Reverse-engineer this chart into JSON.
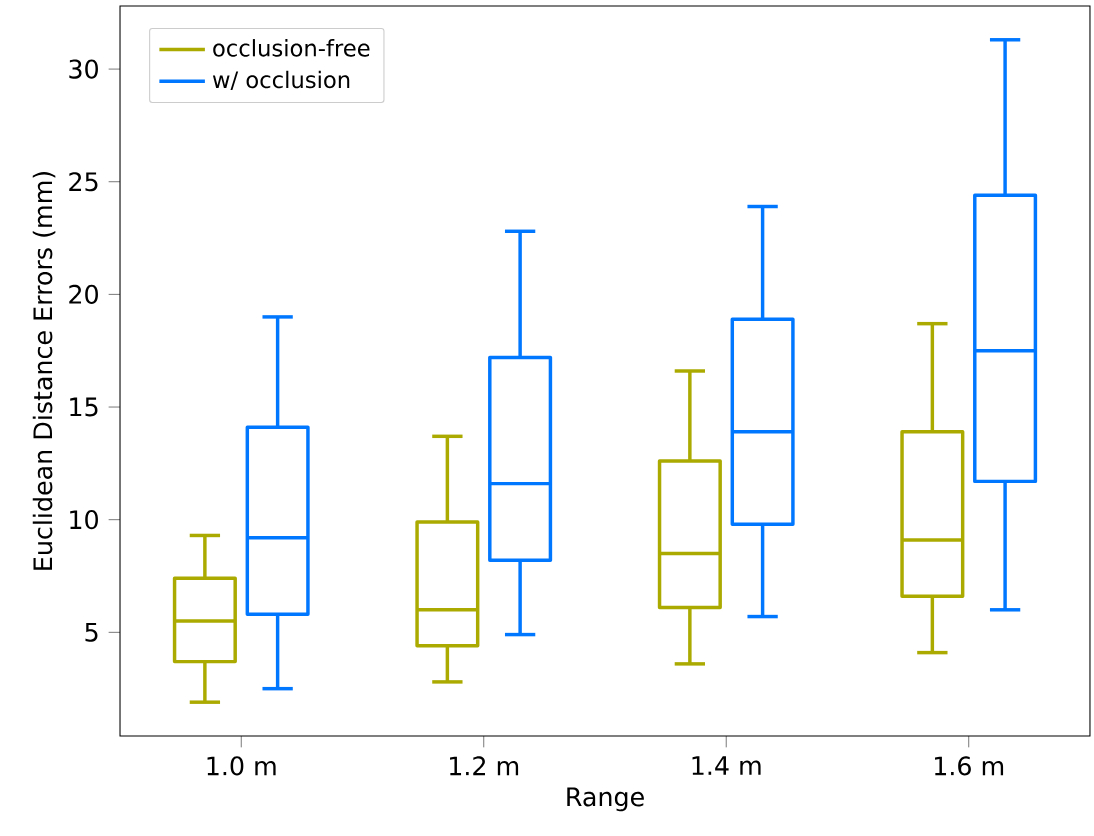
{
  "chart_data": {
    "type": "box",
    "xlabel": "Range",
    "ylabel": "Euclidean Distance Errors (mm)",
    "categories": [
      "1.0 m",
      "1.2 m",
      "1.4 m",
      "1.6 m"
    ],
    "ylim": [
      0.4,
      32.8
    ],
    "yticks": [
      5,
      10,
      15,
      20,
      25,
      30
    ],
    "legend": "top left",
    "series": [
      {
        "name": "occlusion-free",
        "color": "#aaaa00",
        "boxes": [
          {
            "low": 1.9,
            "q1": 3.7,
            "median": 5.5,
            "q3": 7.4,
            "high": 9.3
          },
          {
            "low": 2.8,
            "q1": 4.4,
            "median": 6.0,
            "q3": 9.9,
            "high": 13.7
          },
          {
            "low": 3.6,
            "q1": 6.1,
            "median": 8.5,
            "q3": 12.6,
            "high": 16.6
          },
          {
            "low": 4.1,
            "q1": 6.6,
            "median": 9.1,
            "q3": 13.9,
            "high": 18.7
          }
        ]
      },
      {
        "name": "w/ occlusion",
        "color": "#0077ff",
        "boxes": [
          {
            "low": 2.5,
            "q1": 5.8,
            "median": 9.2,
            "q3": 14.1,
            "high": 19.0
          },
          {
            "low": 4.9,
            "q1": 8.2,
            "median": 11.6,
            "q3": 17.2,
            "high": 22.8
          },
          {
            "low": 5.7,
            "q1": 9.8,
            "median": 13.9,
            "q3": 18.9,
            "high": 23.9
          },
          {
            "low": 6.0,
            "q1": 11.7,
            "median": 17.5,
            "q3": 24.4,
            "high": 31.3
          }
        ]
      }
    ]
  }
}
